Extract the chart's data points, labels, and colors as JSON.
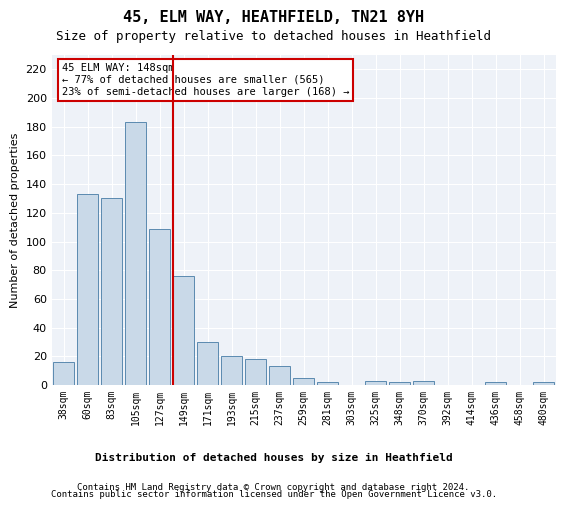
{
  "title": "45, ELM WAY, HEATHFIELD, TN21 8YH",
  "subtitle": "Size of property relative to detached houses in Heathfield",
  "xlabel": "Distribution of detached houses by size in Heathfield",
  "ylabel": "Number of detached properties",
  "categories": [
    "38sqm",
    "60sqm",
    "83sqm",
    "105sqm",
    "127sqm",
    "149sqm",
    "171sqm",
    "193sqm",
    "215sqm",
    "237sqm",
    "259sqm",
    "281sqm",
    "303sqm",
    "325sqm",
    "348sqm",
    "370sqm",
    "392sqm",
    "414sqm",
    "436sqm",
    "458sqm",
    "480sqm"
  ],
  "values": [
    16,
    133,
    130,
    183,
    109,
    76,
    30,
    20,
    18,
    13,
    5,
    2,
    0,
    3,
    2,
    3,
    0,
    0,
    2,
    0,
    2
  ],
  "bar_color": "#c9d9e8",
  "bar_edge_color": "#5a8ab0",
  "annotation_text": "45 ELM WAY: 148sqm\n← 77% of detached houses are smaller (565)\n23% of semi-detached houses are larger (168) →",
  "annotation_box_color": "#ffffff",
  "annotation_box_edge_color": "#cc0000",
  "vline_color": "#cc0000",
  "vline_x": 4.575,
  "ylim": [
    0,
    230
  ],
  "yticks": [
    0,
    20,
    40,
    60,
    80,
    100,
    120,
    140,
    160,
    180,
    200,
    220
  ],
  "background_color": "#eef2f8",
  "grid_color": "#ffffff",
  "footer_line1": "Contains HM Land Registry data © Crown copyright and database right 2024.",
  "footer_line2": "Contains public sector information licensed under the Open Government Licence v3.0."
}
